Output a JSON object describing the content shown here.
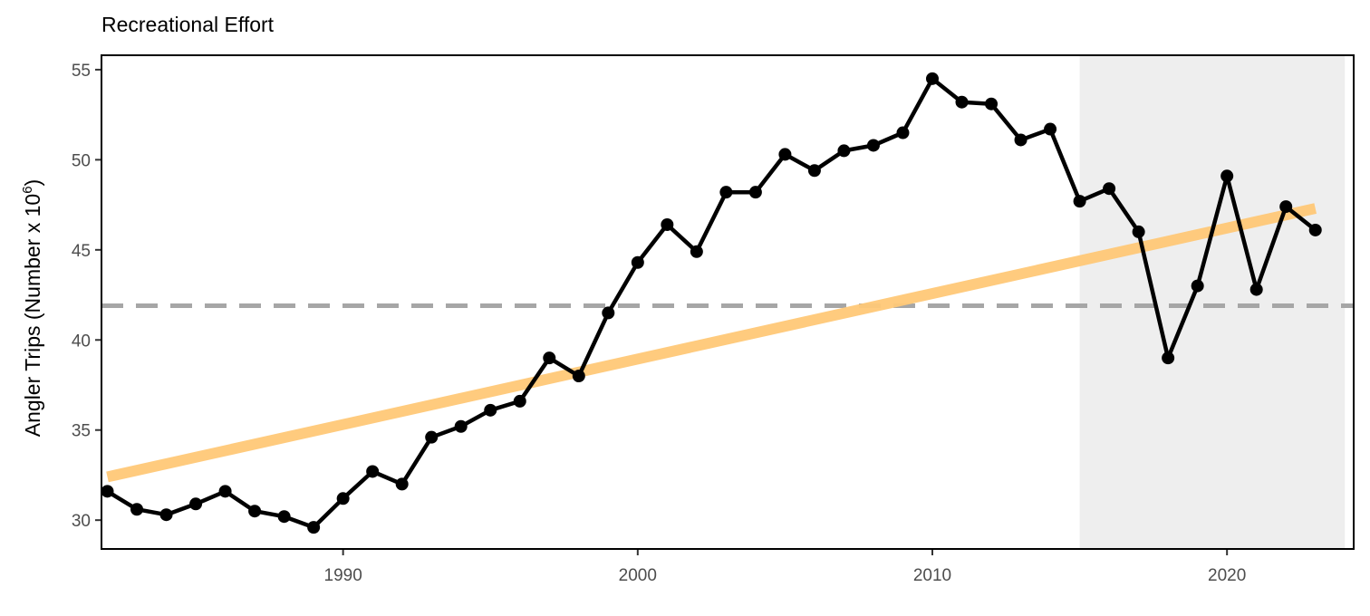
{
  "chart_data": {
    "type": "line",
    "title": "Recreational Effort",
    "ylabel": {
      "main": "Angler Trips (Number x 10",
      "superscript": "6",
      "close": ")"
    },
    "xlabel": "",
    "xlim": [
      1981.8,
      2024.3
    ],
    "ylim": [
      28.4,
      55.8
    ],
    "x_ticks": [
      1990,
      2000,
      2010,
      2020
    ],
    "y_ticks": [
      30,
      35,
      40,
      45,
      50,
      55
    ],
    "shaded_region": {
      "x_start": 2015,
      "x_end": 2024,
      "color": "#eeeeee"
    },
    "reference_line": {
      "y": 41.9,
      "style": "dashed",
      "color": "#a6a6a6"
    },
    "trend_line": {
      "x": [
        1982,
        2023
      ],
      "y": [
        32.4,
        47.3
      ],
      "color": "#ffc978"
    },
    "series": [
      {
        "color": "#000000",
        "x": [
          1982,
          1983,
          1984,
          1985,
          1986,
          1987,
          1988,
          1989,
          1990,
          1991,
          1992,
          1993,
          1994,
          1995,
          1996,
          1997,
          1998,
          1999,
          2000,
          2001,
          2002,
          2003,
          2004,
          2005,
          2006,
          2007,
          2008,
          2009,
          2010,
          2011,
          2012,
          2013,
          2014,
          2015,
          2016,
          2017,
          2018,
          2019,
          2020,
          2021,
          2022,
          2023
        ],
        "y": [
          31.6,
          30.6,
          30.3,
          30.9,
          31.6,
          30.5,
          30.2,
          29.6,
          31.2,
          32.7,
          32.0,
          34.6,
          35.2,
          36.1,
          36.6,
          39.0,
          38.0,
          41.5,
          44.3,
          46.4,
          44.9,
          48.2,
          48.2,
          50.3,
          49.4,
          50.5,
          50.8,
          51.5,
          54.5,
          53.2,
          53.1,
          51.1,
          51.7,
          47.7,
          48.4,
          46.0,
          39.0,
          43.0,
          49.1,
          42.8,
          47.4,
          46.1
        ]
      }
    ]
  }
}
